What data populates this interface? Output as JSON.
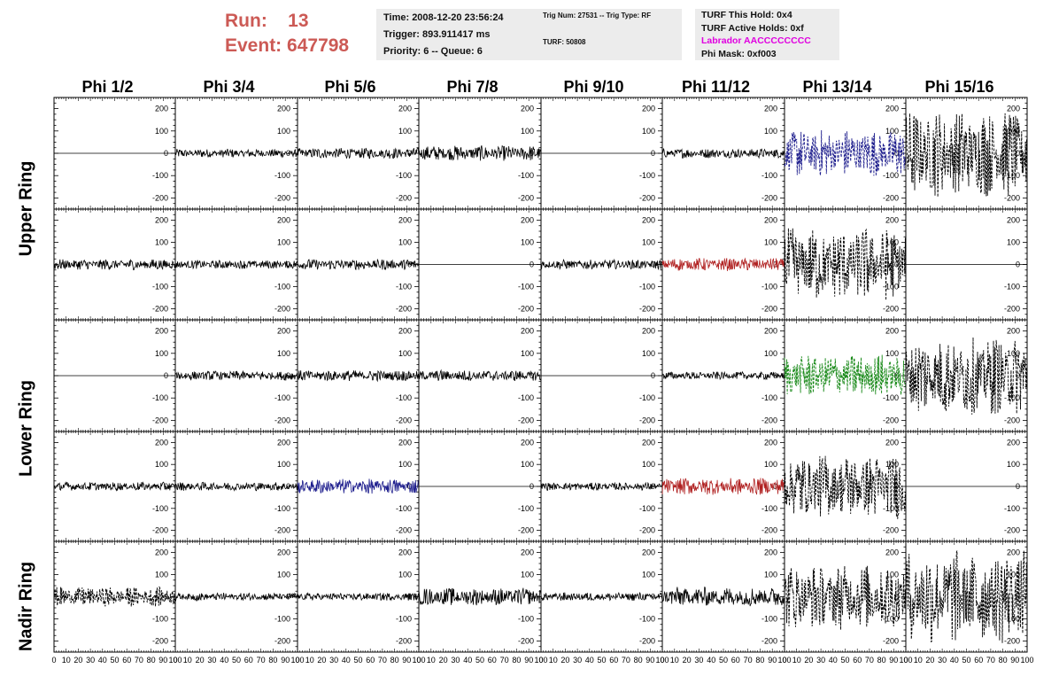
{
  "header": {
    "run_label": "Run:",
    "run_value": "13",
    "event_label": "Event:",
    "event_value": "647798",
    "time_line": "Time: 2008-12-20 23:56:24",
    "trigger_line": "Trigger: 893.911417 ms",
    "priority_line": "Priority: 6 -- Queue: 6",
    "trig_num_line": "Trig Num: 27531 -- Trig Type: RF",
    "turf_line": "TURF: 50808",
    "turf_hold": "TURF This Hold: 0x4",
    "turf_active": "TURF Active Holds: 0xf",
    "labrador": "Labrador AACCCCCCCC",
    "phi_mask": "Phi Mask: 0xf003"
  },
  "colors": {
    "run_text": "#cc5a55",
    "labrador": "#e000e0",
    "trace_black": "#000000",
    "trace_blue": "#1c1c8c",
    "trace_red": "#b02020",
    "trace_green": "#1a8a1a"
  },
  "chart_data": {
    "type": "line",
    "columns": [
      "Phi 1/2",
      "Phi 3/4",
      "Phi 5/6",
      "Phi 7/8",
      "Phi 9/10",
      "Phi 11/12",
      "Phi 13/14",
      "Phi 15/16"
    ],
    "rows": [
      "Upper Ring",
      "Upper Ring",
      "Lower Ring",
      "Lower Ring",
      "Nadir Ring"
    ],
    "ring_labels": [
      "Upper Ring",
      "Lower Ring",
      "Nadir Ring"
    ],
    "xlim": [
      0,
      100
    ],
    "ylim": [
      -250,
      250
    ],
    "y_ticks": [
      200,
      100,
      0,
      -100,
      -200
    ],
    "x_tick_labels": [
      "0",
      "10",
      "20",
      "30",
      "40",
      "50",
      "60",
      "70",
      "80",
      "90",
      "100"
    ],
    "panels": [
      [
        {
          "a": 0,
          "c": "flat"
        },
        {
          "a": 20,
          "c": "black"
        },
        {
          "a": 25,
          "c": "black"
        },
        {
          "a": 35,
          "c": "black"
        },
        {
          "a": 0,
          "c": "flat"
        },
        {
          "a": 22,
          "c": "black"
        },
        {
          "a": 110,
          "c": "blue",
          "dash": true
        },
        {
          "a": 200,
          "c": "black",
          "dash": true
        }
      ],
      [
        {
          "a": 25,
          "c": "black"
        },
        {
          "a": 20,
          "c": "black"
        },
        {
          "a": 25,
          "c": "black"
        },
        {
          "a": 0,
          "c": "flat"
        },
        {
          "a": 22,
          "c": "black"
        },
        {
          "a": 30,
          "c": "red"
        },
        {
          "a": 170,
          "c": "black",
          "dash": true
        },
        {
          "a": 0,
          "c": "flat"
        }
      ],
      [
        {
          "a": 0,
          "c": "flat"
        },
        {
          "a": 22,
          "c": "black"
        },
        {
          "a": 25,
          "c": "black"
        },
        {
          "a": 25,
          "c": "black"
        },
        {
          "a": 0,
          "c": "flat"
        },
        {
          "a": 18,
          "c": "black"
        },
        {
          "a": 100,
          "c": "green",
          "dash": true
        },
        {
          "a": 180,
          "c": "black",
          "dash": true
        }
      ],
      [
        {
          "a": 20,
          "c": "black"
        },
        {
          "a": 20,
          "c": "black"
        },
        {
          "a": 35,
          "c": "blue"
        },
        {
          "a": 0,
          "c": "flat"
        },
        {
          "a": 18,
          "c": "black"
        },
        {
          "a": 40,
          "c": "red"
        },
        {
          "a": 150,
          "c": "black",
          "dash": true
        },
        {
          "a": 0,
          "c": "flat"
        }
      ],
      [
        {
          "a": 45,
          "c": "black",
          "dash": true
        },
        {
          "a": 18,
          "c": "black"
        },
        {
          "a": 18,
          "c": "black"
        },
        {
          "a": 40,
          "c": "black"
        },
        {
          "a": 20,
          "c": "black"
        },
        {
          "a": 45,
          "c": "black"
        },
        {
          "a": 150,
          "c": "black",
          "dash": true
        },
        {
          "a": 220,
          "c": "black",
          "dash": true
        }
      ]
    ]
  }
}
